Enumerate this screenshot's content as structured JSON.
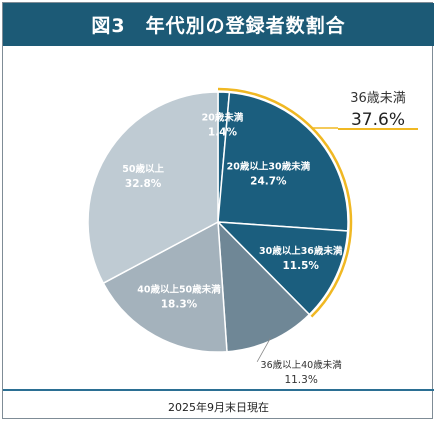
{
  "title": "図3　年代別の登録者数割合",
  "footer": "2025年9月末日現在",
  "chart_data": {
    "type": "pie",
    "title": "図3　年代別の登録者数割合",
    "slices": [
      {
        "label": "20歳未満",
        "value": 1.4,
        "value_label": "1.4%",
        "color": "#1b5e7e"
      },
      {
        "label": "20歳以上30歳未満",
        "value": 24.7,
        "value_label": "24.7%",
        "color": "#1b5e7e"
      },
      {
        "label": "30歳以上36歳未満",
        "value": 11.5,
        "value_label": "11.5%",
        "color": "#1b5e7e"
      },
      {
        "label": "36歳以上40歳未満",
        "value": 11.3,
        "value_label": "11.3%",
        "color": "#6f8796"
      },
      {
        "label": "40歳以上50歳未満",
        "value": 18.3,
        "value_label": "18.3%",
        "color": "#a4b2bc"
      },
      {
        "label": "50歳以上",
        "value": 32.8,
        "value_label": "32.8%",
        "color": "#bfcbd3"
      }
    ],
    "highlight": {
      "label": "36歳未満",
      "value": 37.6,
      "value_label": "37.6%",
      "color": "#f0b823"
    }
  }
}
